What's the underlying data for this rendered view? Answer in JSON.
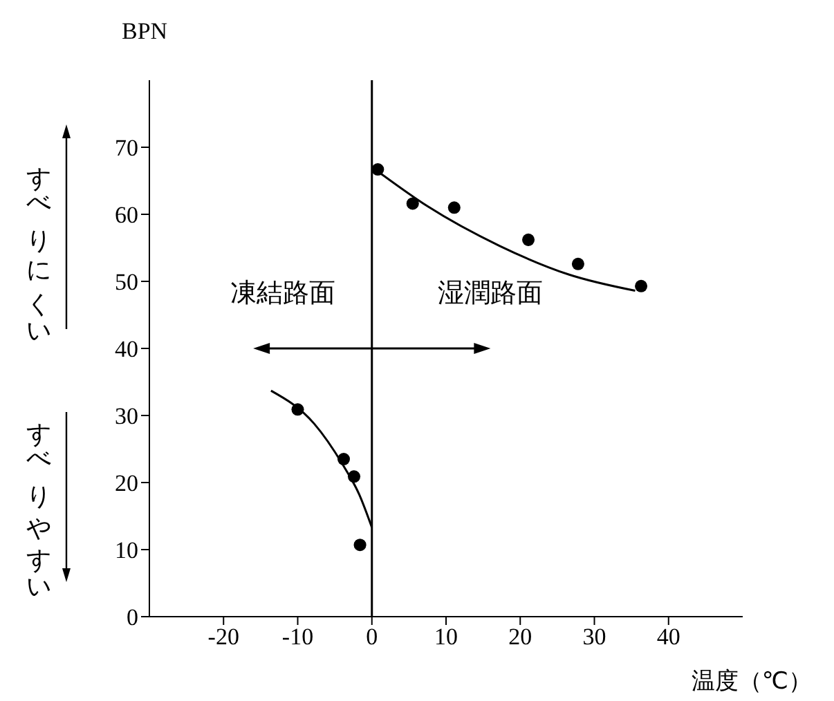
{
  "chart_data": {
    "type": "scatter",
    "ylabel": "BPN",
    "xlabel": "温度（℃）",
    "annotations": [
      "凍結路面",
      "湿潤路面",
      "すべりにくい",
      "すべりやすい"
    ],
    "xlim": [
      -30,
      50
    ],
    "xticks": [
      -20,
      -10,
      0,
      10,
      20,
      30,
      40
    ],
    "ylim": [
      0,
      80
    ],
    "yticks": [
      0,
      10,
      20,
      30,
      40,
      50,
      60,
      70
    ],
    "grid": false,
    "marker": "circle",
    "ref_lines": [
      {
        "axis": "x",
        "value": 0,
        "color": "#000000"
      }
    ],
    "series": [
      {
        "type": "scatter",
        "color": "#000000",
        "x": [
          0.8,
          5.5,
          11.1,
          21.1,
          27.8,
          36.3
        ],
        "values": [
          66.7,
          61.6,
          61.0,
          56.2,
          52.6,
          49.3
        ]
      },
      {
        "type": "line",
        "color": "#000000",
        "marker": "none",
        "x": [
          0.8,
          7.5,
          17.2,
          26.6,
          35.5
        ],
        "values": [
          66.4,
          61.2,
          55.3,
          51.0,
          48.6
        ]
      },
      {
        "type": "scatter",
        "color": "#000000",
        "x": [
          -10,
          -3.8,
          -2.4,
          -1.6
        ],
        "values": [
          30.9,
          23.5,
          20.9,
          10.7
        ]
      },
      {
        "type": "line",
        "color": "#000000",
        "marker": "none",
        "x": [
          -13.6,
          -7.8,
          -4,
          -1.7,
          0
        ],
        "values": [
          33.7,
          28.8,
          22.8,
          18.2,
          13.3
        ]
      }
    ]
  }
}
